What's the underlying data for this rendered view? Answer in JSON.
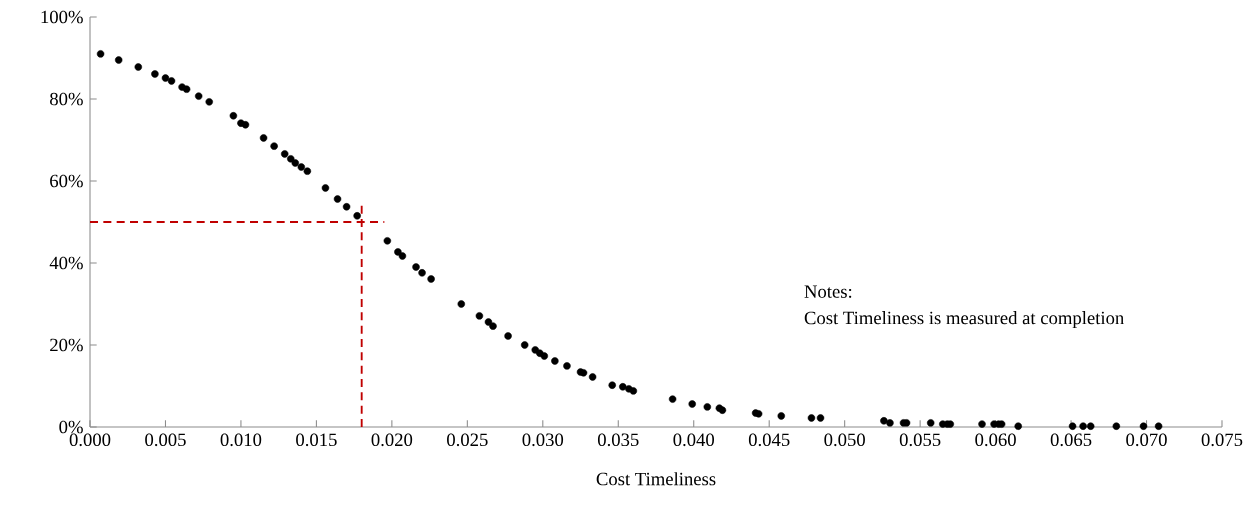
{
  "chart_data": {
    "type": "scatter",
    "xlabel": "Cost Timeliness",
    "annotations": [
      "Notes:",
      "Cost Timeliness is measured at completion"
    ],
    "x": [
      0.0007,
      0.0019,
      0.0032,
      0.0043,
      0.005,
      0.0054,
      0.0061,
      0.0064,
      0.0072,
      0.0079,
      0.0095,
      0.01,
      0.0103,
      0.0115,
      0.0122,
      0.0129,
      0.0133,
      0.0136,
      0.014,
      0.0144,
      0.0156,
      0.0164,
      0.017,
      0.0177,
      0.0197,
      0.0204,
      0.0207,
      0.0216,
      0.022,
      0.0226,
      0.0246,
      0.0258,
      0.0264,
      0.0267,
      0.0277,
      0.0288,
      0.0295,
      0.0298,
      0.0301,
      0.0308,
      0.0316,
      0.0325,
      0.0327,
      0.0333,
      0.0346,
      0.0353,
      0.0357,
      0.036,
      0.0386,
      0.0399,
      0.0409,
      0.0417,
      0.0419,
      0.0441,
      0.0443,
      0.0458,
      0.0478,
      0.0484,
      0.0526,
      0.053,
      0.0539,
      0.0541,
      0.0557,
      0.0565,
      0.0568,
      0.057,
      0.0591,
      0.0599,
      0.0602,
      0.0604,
      0.0615,
      0.0651,
      0.0658,
      0.0663,
      0.068,
      0.0698,
      0.0708
    ],
    "series": [
      {
        "color": "#000000",
        "values": [
          91.0,
          89.5,
          87.8,
          86.1,
          85.1,
          84.4,
          82.9,
          82.4,
          80.7,
          79.3,
          75.9,
          74.1,
          73.7,
          70.5,
          68.5,
          66.6,
          65.4,
          64.4,
          63.4,
          62.4,
          58.3,
          55.6,
          53.7,
          51.5,
          45.4,
          42.7,
          41.7,
          39.0,
          37.6,
          36.1,
          30.0,
          27.1,
          25.6,
          24.6,
          22.2,
          20.0,
          18.8,
          18.0,
          17.3,
          16.1,
          14.9,
          13.4,
          13.2,
          12.2,
          10.2,
          9.8,
          9.3,
          8.8,
          6.8,
          5.6,
          4.9,
          4.6,
          4.1,
          3.4,
          3.2,
          2.7,
          2.2,
          2.2,
          1.5,
          1.0,
          1.0,
          1.0,
          1.0,
          0.7,
          0.7,
          0.7,
          0.7,
          0.7,
          0.7,
          0.7,
          0.2,
          0.2,
          0.2,
          0.2,
          0.2,
          0.2,
          0.2
        ]
      }
    ],
    "marker": "circle",
    "xlim": [
      0,
      0.075
    ],
    "xticks": [
      {
        "value": 0,
        "label": "0.000"
      },
      {
        "value": 0.005,
        "label": "0.005"
      },
      {
        "value": 0.01,
        "label": "0.010"
      },
      {
        "value": 0.015,
        "label": "0.015"
      },
      {
        "value": 0.02,
        "label": "0.020"
      },
      {
        "value": 0.025,
        "label": "0.025"
      },
      {
        "value": 0.03,
        "label": "0.030"
      },
      {
        "value": 0.035,
        "label": "0.035"
      },
      {
        "value": 0.04,
        "label": "0.040"
      },
      {
        "value": 0.045,
        "label": "0.045"
      },
      {
        "value": 0.05,
        "label": "0.050"
      },
      {
        "value": 0.055,
        "label": "0.055"
      },
      {
        "value": 0.06,
        "label": "0.060"
      },
      {
        "value": 0.065,
        "label": "0.065"
      },
      {
        "value": 0.07,
        "label": "0.070"
      },
      {
        "value": 0.075,
        "label": "0.075"
      }
    ],
    "ylim": [
      0,
      100
    ],
    "yticks": [
      {
        "value": 0,
        "label": "0%"
      },
      {
        "value": 20,
        "label": "20%"
      },
      {
        "value": 40,
        "label": "40%"
      },
      {
        "value": 60,
        "label": "60%"
      },
      {
        "value": 80,
        "label": "80%"
      },
      {
        "value": 100,
        "label": "100%"
      }
    ],
    "ref_lines": [
      {
        "axis": "x",
        "value": 0.018,
        "color": "#c00000",
        "line_style": "dashed"
      },
      {
        "axis": "y",
        "value": 50,
        "color": "#c00000",
        "line_style": "dashed"
      }
    ],
    "grid": false
  }
}
